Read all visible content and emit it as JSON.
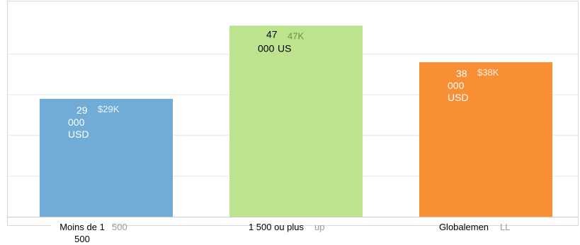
{
  "chart_data": {
    "type": "bar",
    "categories": [
      "Moins de 1 500",
      "1 500 ou plus",
      "Globalement"
    ],
    "category_ghost_labels": [
      "500",
      "up",
      "LL"
    ],
    "values": [
      29000,
      47000,
      38000
    ],
    "value_labels": [
      "29 000 USD",
      "47 000 US",
      "38 000 USD"
    ],
    "ghost_value_labels": [
      "$29K",
      "47K",
      "$38K"
    ],
    "colors": [
      "#71acd6",
      "#bde38f",
      "#f98f35"
    ],
    "value_label_colors": [
      "#ffffff",
      "#000000",
      "#ffffff"
    ],
    "ylim": [
      0,
      50000
    ],
    "grid": true,
    "legend": "none"
  }
}
